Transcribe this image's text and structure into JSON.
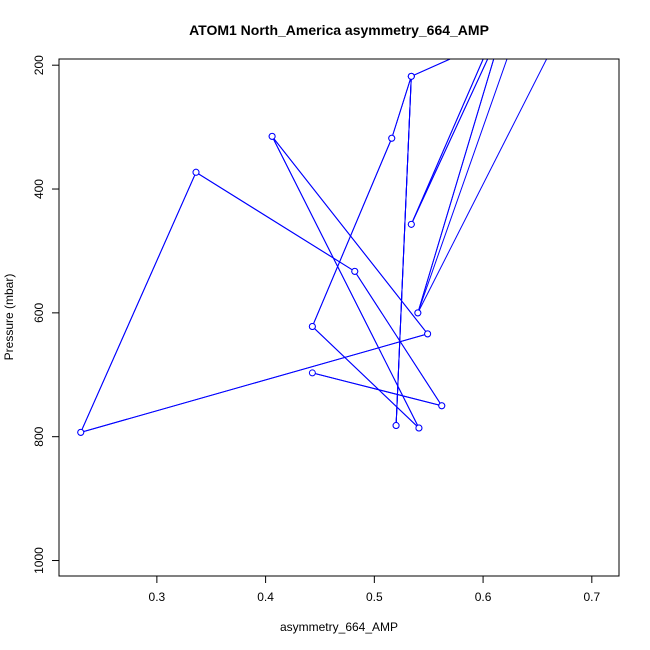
{
  "chart_data": {
    "type": "line",
    "title": "ATOM1 North_America asymmetry_664_AMP",
    "xlabel": "asymmetry_664_AMP",
    "ylabel": "Pressure (mbar)",
    "xlim": [
      0.21,
      0.725
    ],
    "ylim": [
      1025,
      190
    ],
    "y_reversed": true,
    "grid": false,
    "legend": "none",
    "line_color": "#0000ff",
    "x_ticks": [
      0.3,
      0.4,
      0.5,
      0.6,
      0.7
    ],
    "x_tick_labels": [
      "0.3",
      "0.4",
      "0.5",
      "0.6",
      "0.7"
    ],
    "y_ticks": [
      200,
      400,
      600,
      800,
      1000
    ],
    "y_tick_labels": [
      "200",
      "400",
      "600",
      "800",
      "1000"
    ],
    "series": [
      {
        "markers": "open-circle",
        "points": [
          [
            0.63,
            150
          ],
          [
            0.54,
            600
          ],
          [
            0.62,
            130
          ],
          [
            0.534,
            457
          ],
          [
            0.61,
            150
          ],
          [
            0.608,
            160
          ],
          [
            0.534,
            218
          ],
          [
            0.52,
            782
          ],
          [
            0.534,
            218
          ],
          [
            0.516,
            318
          ],
          [
            0.443,
            622
          ],
          [
            0.541,
            786
          ],
          [
            0.406,
            315
          ],
          [
            0.549,
            634
          ],
          [
            0.23,
            793
          ],
          [
            0.336,
            373
          ],
          [
            0.482,
            533
          ],
          [
            0.562,
            750
          ],
          [
            0.443,
            697
          ],
          [
            0.562,
            750
          ],
          [
            0.482,
            533
          ],
          [
            0.336,
            373
          ],
          [
            0.23,
            793
          ],
          [
            0.549,
            634
          ],
          [
            0.406,
            315
          ],
          [
            0.541,
            786
          ],
          [
            0.443,
            622
          ],
          [
            0.516,
            318
          ],
          [
            0.534,
            218
          ],
          [
            0.52,
            782
          ],
          [
            0.534,
            218
          ],
          [
            0.608,
            160
          ],
          [
            0.61,
            150
          ],
          [
            0.534,
            457
          ],
          [
            0.62,
            130
          ],
          [
            0.54,
            600
          ],
          [
            0.67,
            150
          ]
        ]
      }
    ]
  }
}
